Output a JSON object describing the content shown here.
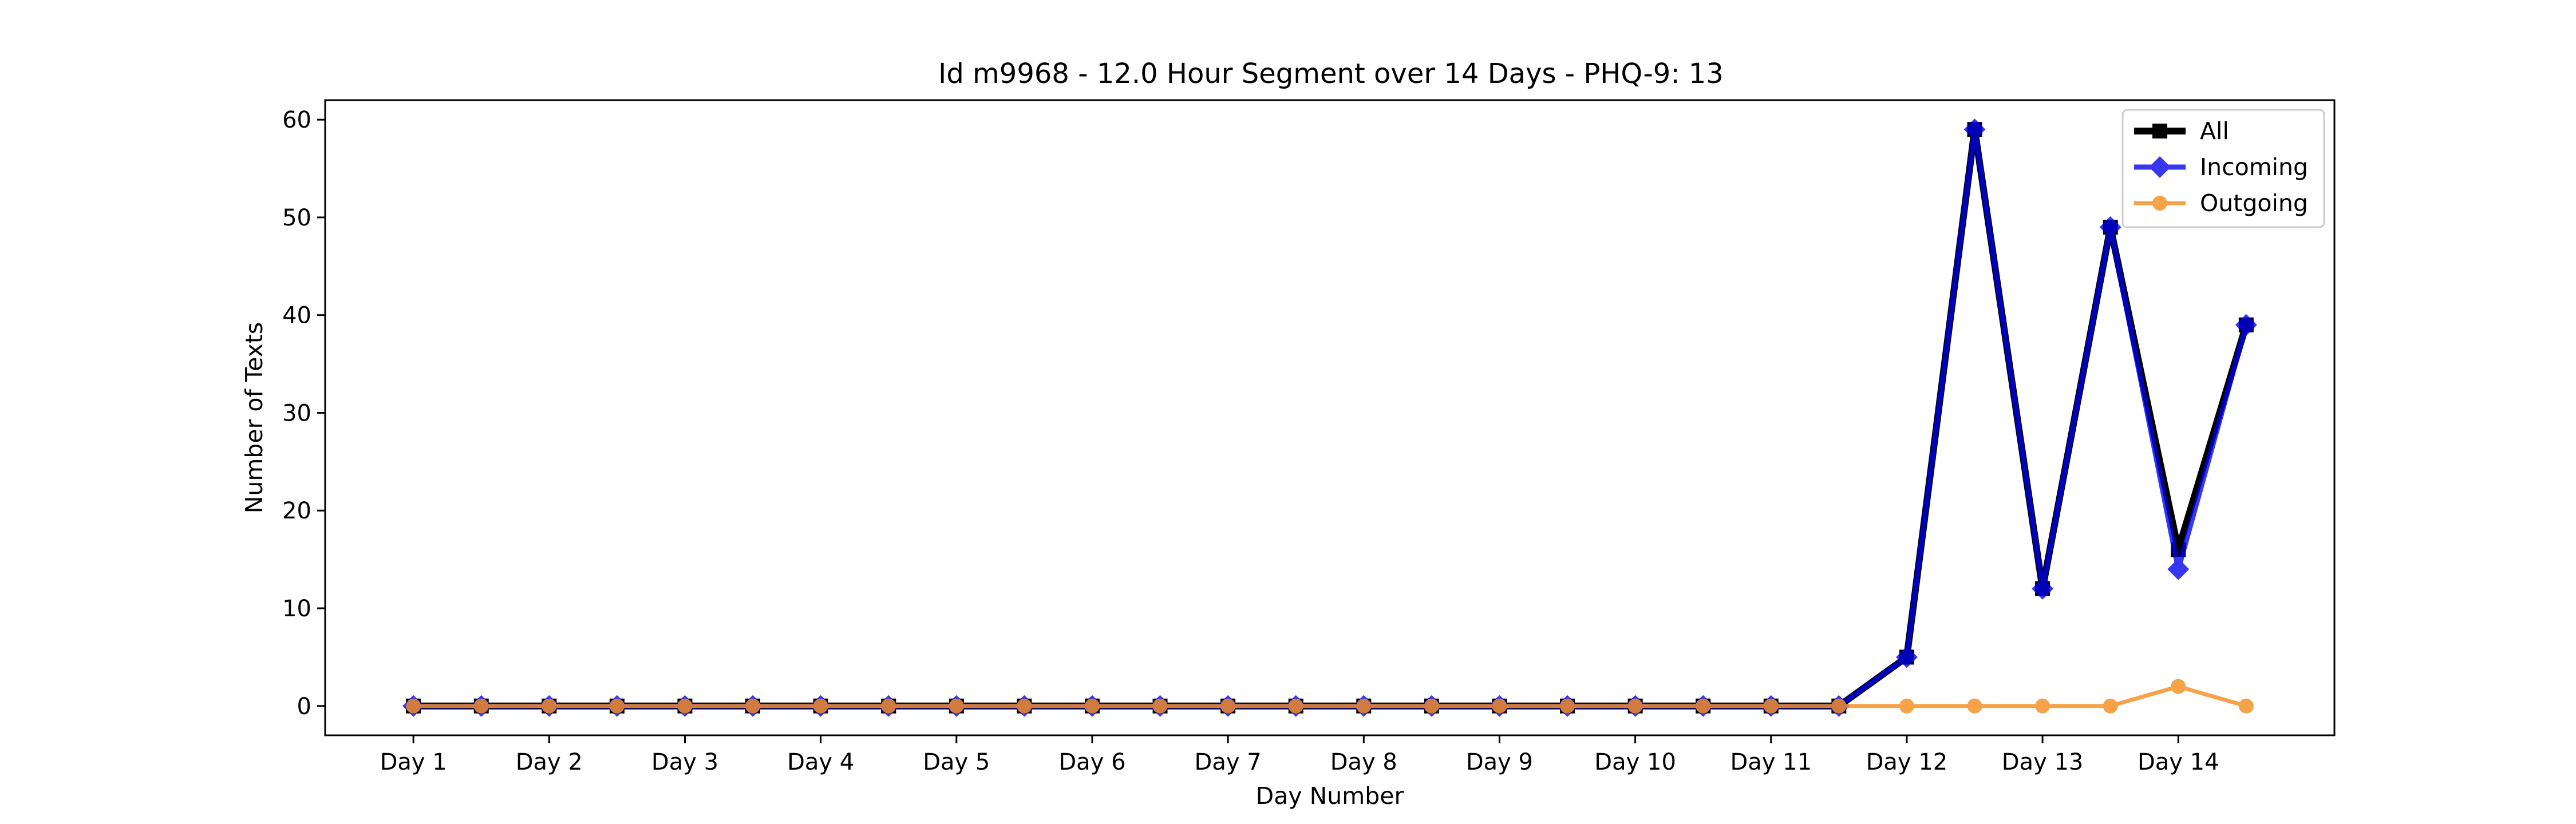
{
  "chart_data": {
    "type": "line",
    "title": "Id m9968 - 12.0 Hour Segment over 14 Days - PHQ-9: 13",
    "xlabel": "Day Number",
    "ylabel": "Number of Texts",
    "x_tick_labels": [
      "Day 1",
      "Day 2",
      "Day 3",
      "Day 4",
      "Day 5",
      "Day 6",
      "Day 7",
      "Day 8",
      "Day 9",
      "Day 10",
      "Day 11",
      "Day 12",
      "Day 13",
      "Day 14"
    ],
    "x": [
      1,
      1.5,
      2,
      2.5,
      3,
      3.5,
      4,
      4.5,
      5,
      5.5,
      6,
      6.5,
      7,
      7.5,
      8,
      8.5,
      9,
      9.5,
      10,
      10.5,
      11,
      11.5,
      12,
      12.5,
      13,
      13.5,
      14,
      14.5
    ],
    "xlim": [
      0.35,
      15.15
    ],
    "ylim": [
      -3,
      62
    ],
    "y_ticks": [
      0,
      10,
      20,
      30,
      40,
      50,
      60
    ],
    "grid": false,
    "legend_position": "top-right",
    "series": [
      {
        "name": "All",
        "color": "#000000",
        "marker": "square",
        "values": [
          0,
          0,
          0,
          0,
          0,
          0,
          0,
          0,
          0,
          0,
          0,
          0,
          0,
          0,
          0,
          0,
          0,
          0,
          0,
          0,
          0,
          0,
          5,
          59,
          12,
          49,
          16,
          39
        ]
      },
      {
        "name": "Incoming",
        "color": "#0000ee",
        "marker": "diamond",
        "values": [
          0,
          0,
          0,
          0,
          0,
          0,
          0,
          0,
          0,
          0,
          0,
          0,
          0,
          0,
          0,
          0,
          0,
          0,
          0,
          0,
          0,
          0,
          5,
          59,
          12,
          49,
          14,
          39
        ]
      },
      {
        "name": "Outgoing",
        "color": "#f5922a",
        "marker": "circle",
        "values": [
          0,
          0,
          0,
          0,
          0,
          0,
          0,
          0,
          0,
          0,
          0,
          0,
          0,
          0,
          0,
          0,
          0,
          0,
          0,
          0,
          0,
          0,
          0,
          0,
          0,
          0,
          2,
          0
        ]
      }
    ]
  }
}
